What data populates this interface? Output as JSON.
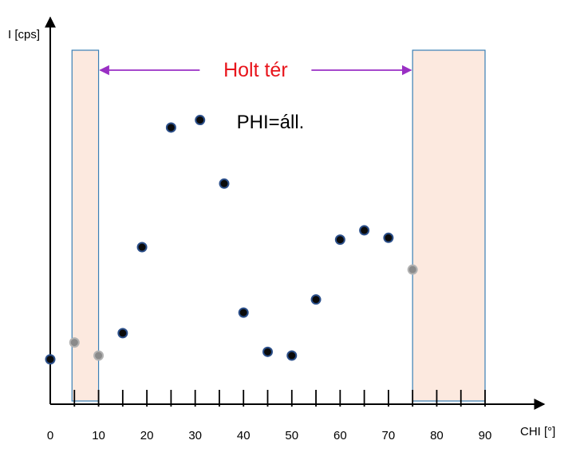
{
  "chart_data": {
    "type": "scatter",
    "title": "",
    "xlabel": "CHI [°]",
    "ylabel": "I [cps]",
    "xlim": [
      0,
      90
    ],
    "ylim": [
      0,
      100
    ],
    "x_ticks_major": [
      0,
      10,
      20,
      30,
      40,
      50,
      60,
      70,
      80,
      90
    ],
    "x_ticks_minor": [
      5,
      15,
      25,
      35,
      45,
      55,
      65,
      75,
      85
    ],
    "y_axis_ticks": false,
    "grid": false,
    "legend": null,
    "colors": {
      "axis": "#000000",
      "point_fill": "#0a0a0a",
      "point_edge": "#2b4f8a",
      "point_dead_fill": "#8a8a8a",
      "point_dead_edge": "#b3b3b3",
      "dead_zone_fill": "#fce9df",
      "dead_zone_stroke": "#3a7fb5",
      "arrow": "#9a2fc4",
      "dead_zone_label": "#e8141b",
      "annotation_text": "#000000"
    },
    "dead_zones": [
      {
        "from": 4.5,
        "to": 10
      },
      {
        "from": 75,
        "to": 90
      }
    ],
    "dead_zone_label": "Holt tér",
    "annotation": "PHI=áll.",
    "points": [
      {
        "x": 0,
        "y": 12,
        "dead": false
      },
      {
        "x": 5,
        "y": 16.5,
        "dead": true
      },
      {
        "x": 10,
        "y": 13,
        "dead": true
      },
      {
        "x": 15,
        "y": 19,
        "dead": false
      },
      {
        "x": 19,
        "y": 42,
        "dead": false
      },
      {
        "x": 25,
        "y": 74,
        "dead": false
      },
      {
        "x": 31,
        "y": 76,
        "dead": false
      },
      {
        "x": 36,
        "y": 59,
        "dead": false
      },
      {
        "x": 40,
        "y": 24.5,
        "dead": false
      },
      {
        "x": 45,
        "y": 14,
        "dead": false
      },
      {
        "x": 50,
        "y": 13,
        "dead": false
      },
      {
        "x": 55,
        "y": 28,
        "dead": false
      },
      {
        "x": 60,
        "y": 44,
        "dead": false
      },
      {
        "x": 65,
        "y": 46.5,
        "dead": false
      },
      {
        "x": 70,
        "y": 44.5,
        "dead": false
      },
      {
        "x": 75,
        "y": 36,
        "dead": true
      }
    ]
  }
}
